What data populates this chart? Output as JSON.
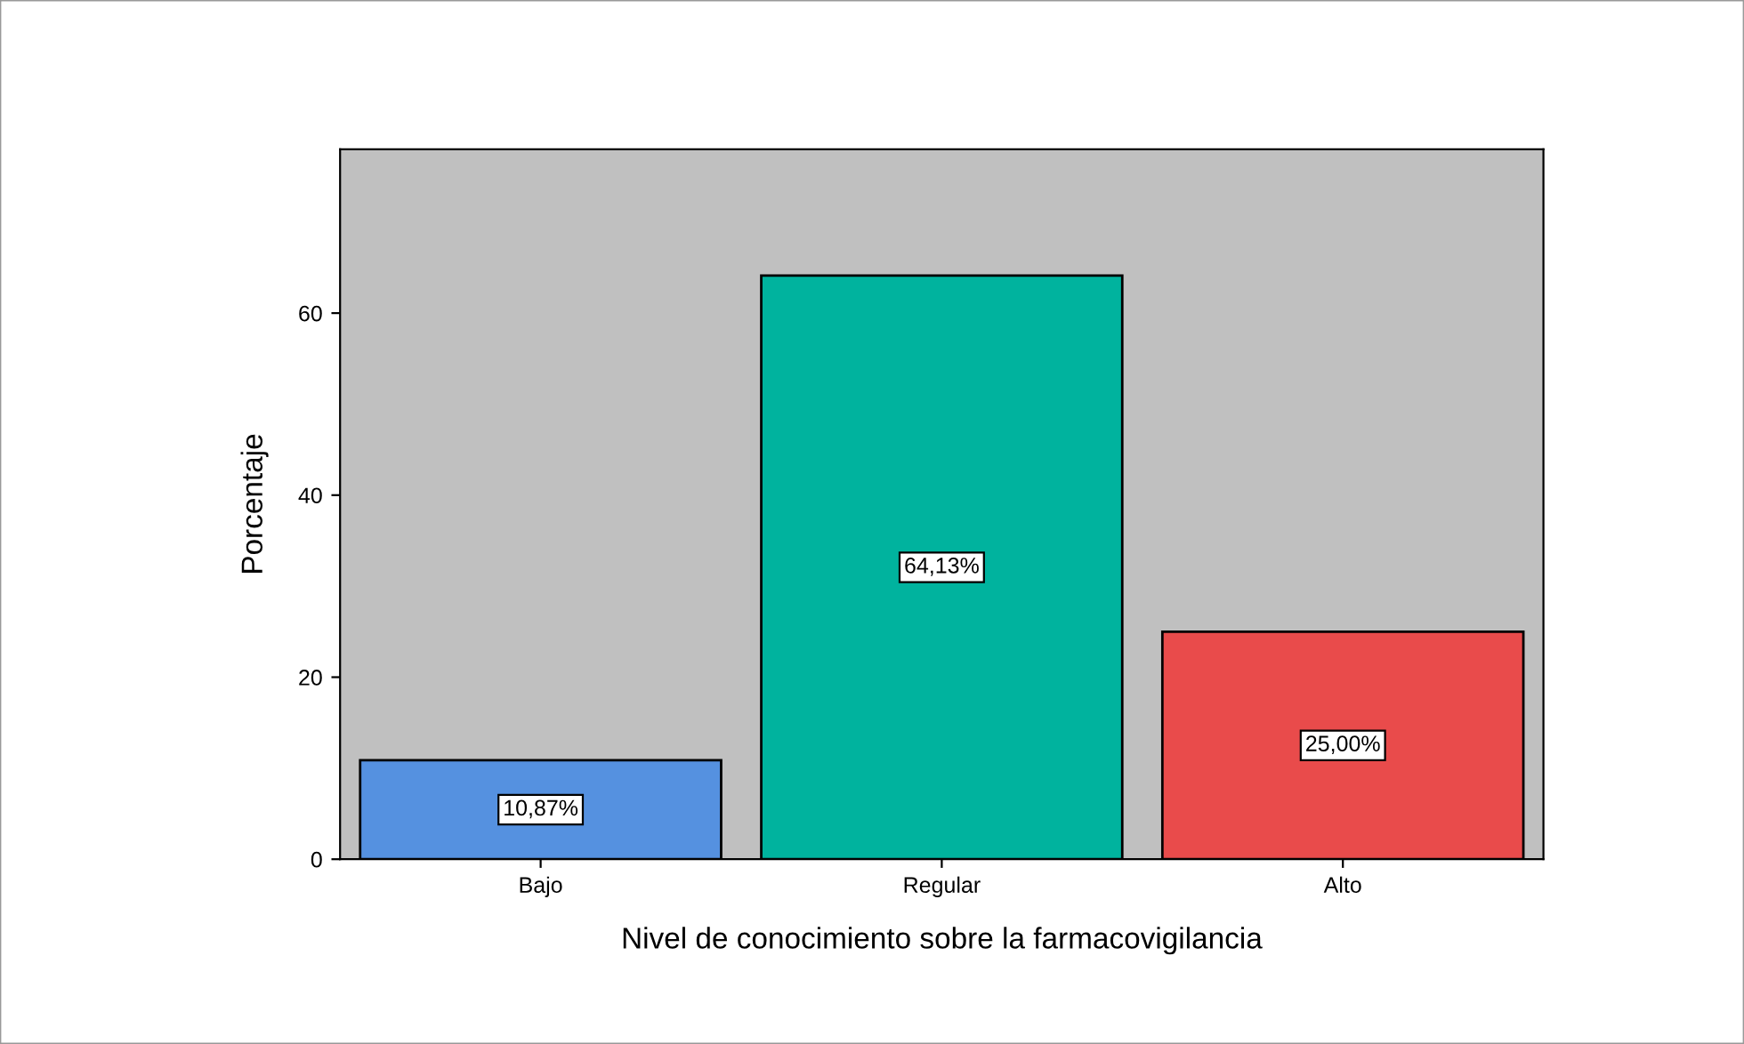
{
  "chart_data": {
    "type": "bar",
    "xlabel": "Nivel de conocimiento sobre la farmacovigilancia",
    "ylabel": "Porcentaje",
    "categories": [
      "Bajo",
      "Regular",
      "Alto"
    ],
    "values": [
      10.87,
      64.13,
      25.0
    ],
    "colors": [
      "#5591e0",
      "#00b39e",
      "#e94b4b"
    ],
    "value_labels": [
      "10,87%",
      "64,13%",
      "25,00%"
    ],
    "ylim": [
      0,
      78
    ],
    "yticks": [
      0,
      20,
      40,
      60
    ],
    "grid": false
  }
}
